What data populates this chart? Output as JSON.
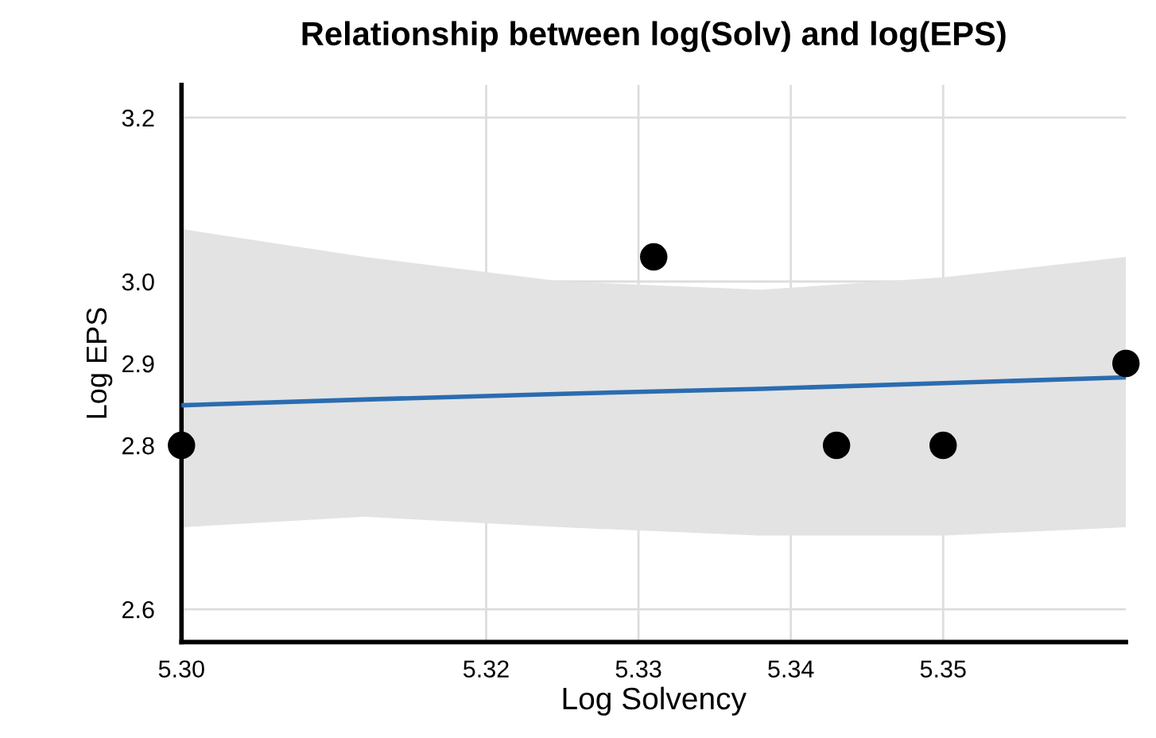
{
  "chart_data": {
    "type": "scatter",
    "title": "Relationship between log(Solv) and log(EPS)",
    "xlabel": "Log Solvency",
    "ylabel": "Log EPS",
    "series": [
      {
        "color": "#000000",
        "marker": "circle",
        "x": [
          5.3,
          5.331,
          5.343,
          5.35,
          5.362
        ],
        "values": [
          2.8,
          3.03,
          2.8,
          2.8,
          2.9
        ]
      },
      {
        "type": "line",
        "color": "#2b6cb0",
        "x": [
          5.3,
          5.312,
          5.325,
          5.338,
          5.35,
          5.362
        ],
        "values": [
          2.849,
          2.856,
          2.863,
          2.869,
          2.876,
          2.883
        ],
        "lower": [
          2.7,
          2.713,
          2.7,
          2.69,
          2.69,
          2.7
        ],
        "upper": [
          3.064,
          3.03,
          3.0,
          2.99,
          3.005,
          3.03
        ]
      }
    ],
    "xlim": [
      5.3,
      5.362
    ],
    "ylim": [
      2.56,
      3.24
    ],
    "xticks": [
      {
        "value": 5.3,
        "label": "5.30"
      },
      5.32,
      5.33,
      5.34,
      5.35
    ],
    "yticks": [
      2.6,
      2.8,
      2.9,
      {
        "value": 3.0,
        "label": "3.0"
      },
      3.2
    ],
    "grid": true
  }
}
